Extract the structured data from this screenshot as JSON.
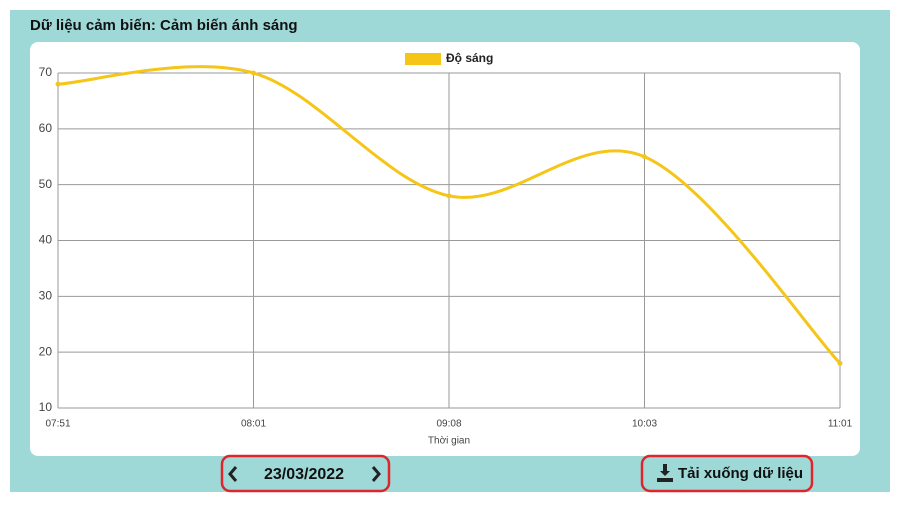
{
  "header": {
    "title": "Dữ liệu cảm biến: Cảm biến ánh sáng"
  },
  "chart_data": {
    "type": "line",
    "categories": [
      "07:51",
      "08:01",
      "09:08",
      "10:03",
      "11:01"
    ],
    "series": [
      {
        "name": "Độ sáng",
        "color": "#f5c518",
        "values": [
          68,
          70,
          48,
          55,
          18
        ]
      }
    ],
    "ylim": [
      10,
      70
    ],
    "yticks": [
      10,
      20,
      30,
      40,
      50,
      60,
      70
    ],
    "xlabel": "Thời gian",
    "grid": true,
    "legend": "top"
  },
  "navigator": {
    "date": "23/03/2022"
  },
  "download": {
    "label": "Tải xuống dữ liệu"
  }
}
